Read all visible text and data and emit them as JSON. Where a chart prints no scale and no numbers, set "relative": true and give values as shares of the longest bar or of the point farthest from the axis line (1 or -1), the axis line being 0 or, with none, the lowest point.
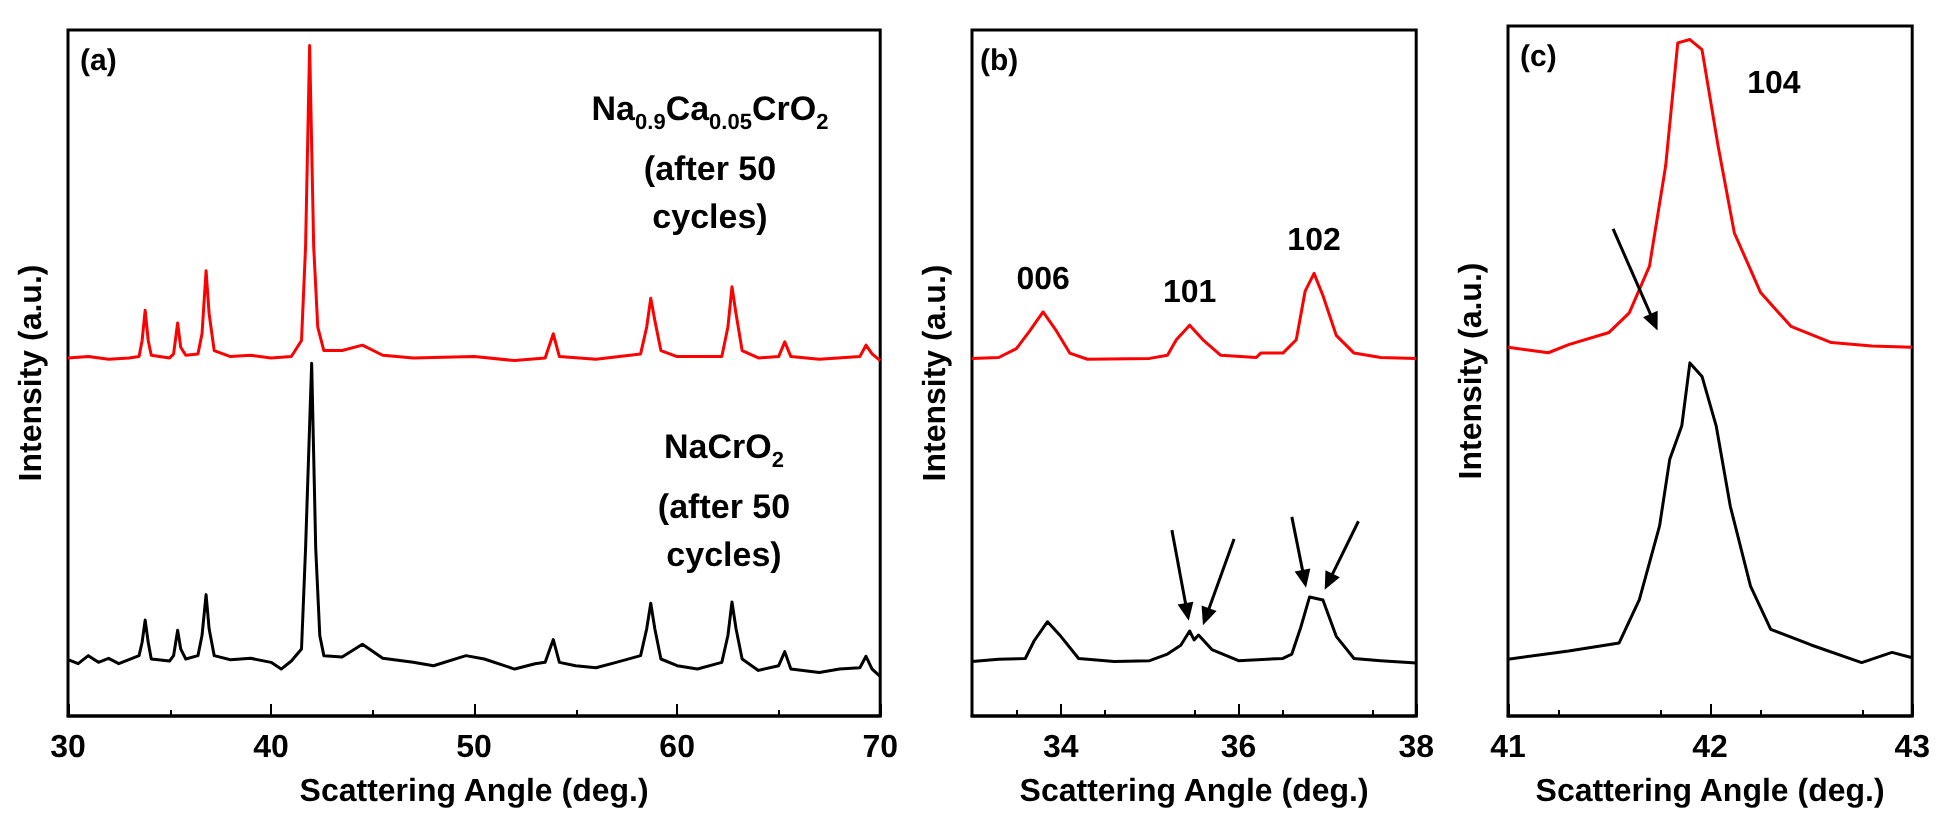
{
  "chart_data": [
    {
      "type": "line",
      "relative": true,
      "marker": "none",
      "xlabel": "Scattering Angle (deg.)",
      "ylabel": "Intensity (a.u.)",
      "xlim": [
        30,
        70
      ],
      "xticks": [
        30,
        40,
        50,
        60,
        70
      ],
      "annotations": [
        "(a)"
      ],
      "series": [
        {
          "name": "Na$_{0.9}$Ca$_{0.05}$CrO$_{2}$\n(after 50 cycles)",
          "color": "#ff0000",
          "x": [
            30,
            31,
            32,
            33,
            33.5,
            33.65,
            33.8,
            33.95,
            34.1,
            35,
            35.2,
            35.4,
            35.55,
            35.8,
            36.4,
            36.6,
            36.8,
            36.95,
            37.2,
            38,
            39,
            40,
            41,
            41.5,
            41.7,
            41.9,
            42.1,
            42.3,
            42.6,
            43.5,
            44.5,
            45.5,
            47,
            50,
            52,
            53.5,
            53.9,
            54.2,
            56,
            58.2,
            58.5,
            58.7,
            58.9,
            59.2,
            60,
            62.2,
            62.5,
            62.7,
            62.9,
            63.2,
            64,
            65,
            65.3,
            65.6,
            67,
            69,
            69.3,
            69.6,
            70
          ],
          "values": [
            0.534,
            0.536,
            0.532,
            0.534,
            0.536,
            0.56,
            0.605,
            0.56,
            0.538,
            0.534,
            0.54,
            0.586,
            0.55,
            0.538,
            0.54,
            0.57,
            0.664,
            0.6,
            0.545,
            0.536,
            0.538,
            0.534,
            0.536,
            0.56,
            0.7,
            1.0,
            0.7,
            0.58,
            0.545,
            0.545,
            0.553,
            0.538,
            0.534,
            0.536,
            0.53,
            0.534,
            0.57,
            0.536,
            0.532,
            0.54,
            0.58,
            0.623,
            0.59,
            0.545,
            0.536,
            0.536,
            0.58,
            0.64,
            0.6,
            0.545,
            0.534,
            0.536,
            0.558,
            0.536,
            0.532,
            0.536,
            0.553,
            0.54,
            0.53
          ]
        },
        {
          "name": "NaCrO$_{2}$\n(after 50 cycles)",
          "color": "#000000",
          "x": [
            30,
            30.5,
            31,
            31.5,
            32,
            32.5,
            33,
            33.5,
            33.65,
            33.8,
            33.95,
            34.1,
            35,
            35.2,
            35.4,
            35.55,
            35.8,
            36.4,
            36.6,
            36.8,
            36.95,
            37.2,
            38,
            39,
            40,
            40.5,
            41,
            41.5,
            41.7,
            42,
            42.2,
            42.4,
            42.6,
            43.5,
            44.5,
            45.5,
            47,
            48,
            49.6,
            50.5,
            52,
            53,
            53.5,
            53.9,
            54.2,
            55,
            56,
            57,
            58.2,
            58.5,
            58.7,
            58.9,
            59.2,
            60,
            61,
            62.2,
            62.5,
            62.7,
            62.9,
            63.2,
            64,
            65,
            65.3,
            65.6,
            67,
            68,
            69,
            69.3,
            69.6,
            70
          ],
          "values": [
            0.084,
            0.078,
            0.09,
            0.08,
            0.086,
            0.078,
            0.084,
            0.09,
            0.11,
            0.143,
            0.11,
            0.085,
            0.082,
            0.09,
            0.128,
            0.1,
            0.085,
            0.09,
            0.12,
            0.181,
            0.13,
            0.09,
            0.084,
            0.086,
            0.08,
            0.07,
            0.082,
            0.1,
            0.25,
            0.526,
            0.25,
            0.12,
            0.09,
            0.088,
            0.107,
            0.086,
            0.08,
            0.075,
            0.09,
            0.085,
            0.07,
            0.078,
            0.08,
            0.114,
            0.08,
            0.075,
            0.072,
            0.08,
            0.09,
            0.13,
            0.168,
            0.13,
            0.085,
            0.075,
            0.07,
            0.08,
            0.12,
            0.17,
            0.13,
            0.085,
            0.068,
            0.075,
            0.096,
            0.07,
            0.065,
            0.07,
            0.072,
            0.089,
            0.07,
            0.059
          ]
        }
      ]
    },
    {
      "type": "line",
      "relative": true,
      "marker": "none",
      "xlabel": "Scattering Angle (deg.)",
      "ylabel": "Intensity (a.u.)",
      "xlim": [
        33,
        38
      ],
      "xticks": [
        34,
        36,
        38
      ],
      "annotations": [
        "(b)",
        {
          "text": "006",
          "x": 33.8,
          "y": 0.913
        },
        {
          "text": "101",
          "x": 35.45,
          "y": 0.883
        },
        {
          "text": "102",
          "x": 36.85,
          "y": 1.0
        }
      ],
      "series": [
        {
          "color": "#ff0000",
          "x": [
            33,
            33.3,
            33.5,
            33.65,
            33.8,
            33.95,
            34.1,
            34.3,
            35,
            35.2,
            35.3,
            35.45,
            35.6,
            35.8,
            36.2,
            36.25,
            36.5,
            36.65,
            36.75,
            36.85,
            36.95,
            37.1,
            37.3,
            37.6,
            38
          ],
          "values": [
            0.808,
            0.81,
            0.83,
            0.87,
            0.913,
            0.87,
            0.82,
            0.806,
            0.808,
            0.815,
            0.85,
            0.883,
            0.85,
            0.815,
            0.81,
            0.82,
            0.82,
            0.85,
            0.96,
            1.0,
            0.95,
            0.86,
            0.82,
            0.81,
            0.808
          ]
        },
        {
          "color": "#000000",
          "x": [
            33,
            33.3,
            33.6,
            33.7,
            33.85,
            34,
            34.2,
            34.6,
            35,
            35.2,
            35.35,
            35.45,
            35.5,
            35.55,
            35.7,
            36,
            36.5,
            36.6,
            36.7,
            36.8,
            36.95,
            37.1,
            37.3,
            37.6,
            38
          ],
          "values": [
            0.123,
            0.128,
            0.13,
            0.17,
            0.213,
            0.18,
            0.13,
            0.123,
            0.125,
            0.14,
            0.16,
            0.192,
            0.172,
            0.183,
            0.15,
            0.125,
            0.13,
            0.14,
            0.2,
            0.269,
            0.262,
            0.18,
            0.13,
            0.125,
            0.12
          ]
        }
      ]
    },
    {
      "type": "line",
      "relative": true,
      "marker": "none",
      "xlabel": "Scattering Angle (deg.)",
      "ylabel": "Intensity (a.u.)",
      "xlim": [
        41,
        43
      ],
      "xticks": [
        41,
        42,
        43
      ],
      "annotations": [
        "(c)",
        {
          "text": "104",
          "x": 41.9,
          "y": 1.0
        }
      ],
      "series": [
        {
          "color": "#ff0000",
          "x": [
            41,
            41.2,
            41.3,
            41.5,
            41.6,
            41.7,
            41.78,
            41.84,
            41.9,
            41.96,
            42.04,
            42.12,
            42.25,
            42.4,
            42.6,
            42.8,
            43
          ],
          "values": [
            0.545,
            0.537,
            0.549,
            0.567,
            0.596,
            0.665,
            0.813,
            0.995,
            1.0,
            0.985,
            0.842,
            0.714,
            0.626,
            0.576,
            0.552,
            0.547,
            0.545
          ]
        },
        {
          "color": "#000000",
          "x": [
            41,
            41.3,
            41.55,
            41.65,
            41.75,
            41.8,
            41.86,
            41.9,
            41.96,
            42.03,
            42.1,
            42.2,
            42.3,
            42.5,
            42.75,
            42.9,
            43
          ],
          "values": [
            0.084,
            0.096,
            0.108,
            0.172,
            0.281,
            0.379,
            0.429,
            0.522,
            0.502,
            0.429,
            0.31,
            0.192,
            0.128,
            0.105,
            0.079,
            0.094,
            0.086
          ]
        }
      ]
    }
  ]
}
